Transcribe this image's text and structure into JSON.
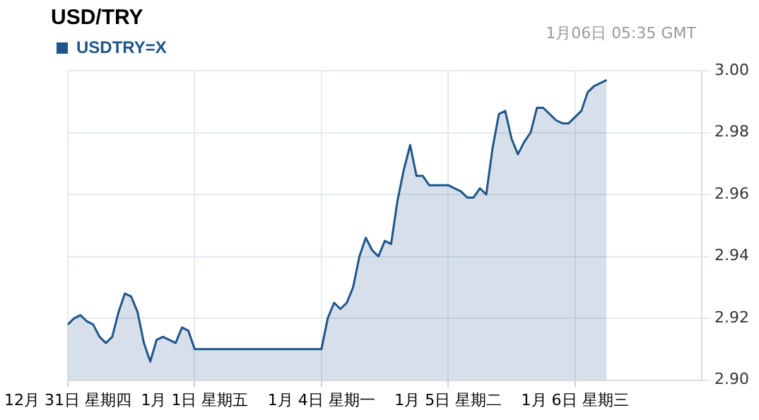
{
  "chart_data": {
    "type": "area",
    "title": "USD/TRY",
    "annotations": [
      "1月06日 05:35 GMT"
    ],
    "legend": "top left",
    "grid": true,
    "categories": [
      "12月 31日 星期四",
      null,
      null,
      null,
      null,
      null,
      null,
      null,
      null,
      null,
      null,
      null,
      null,
      null,
      null,
      null,
      null,
      null,
      null,
      null,
      "1月 1日 星期五",
      null,
      null,
      null,
      null,
      null,
      null,
      null,
      null,
      null,
      null,
      null,
      null,
      null,
      null,
      null,
      null,
      null,
      null,
      null,
      "1月 4日 星期一",
      null,
      null,
      null,
      null,
      null,
      null,
      null,
      null,
      null,
      null,
      null,
      null,
      null,
      null,
      null,
      null,
      null,
      null,
      null,
      "1月 5日 星期二",
      null,
      null,
      null,
      null,
      null,
      null,
      null,
      null,
      null,
      null,
      null,
      null,
      null,
      null,
      null,
      null,
      null,
      null,
      null,
      "1月 6日 星期三",
      null,
      null,
      null,
      null,
      null,
      null,
      null,
      null,
      null,
      null,
      null,
      null,
      null,
      null,
      null,
      null,
      null,
      null,
      null,
      null
    ],
    "ylim": [
      2.9,
      3.0
    ],
    "yticks": [
      {
        "value": 2.9,
        "label": "2.90"
      },
      {
        "value": 2.92,
        "label": "2.92"
      },
      {
        "value": 2.94,
        "label": "2.94"
      },
      {
        "value": 2.96,
        "label": "2.96"
      },
      {
        "value": 2.98,
        "label": "2.98"
      },
      {
        "value": 3.0,
        "label": "3.00"
      }
    ],
    "series": [
      {
        "name": "USDTRY=X",
        "color": "#1f558a",
        "values": [
          2.918,
          2.92,
          2.921,
          2.919,
          2.918,
          2.914,
          2.912,
          2.914,
          2.922,
          2.928,
          2.927,
          2.922,
          2.912,
          2.906,
          2.913,
          2.914,
          2.913,
          2.912,
          2.917,
          2.916,
          2.91,
          2.91,
          2.91,
          2.91,
          2.91,
          2.91,
          2.91,
          2.91,
          2.91,
          2.91,
          2.91,
          2.91,
          2.91,
          2.91,
          2.91,
          2.91,
          2.91,
          2.91,
          2.91,
          2.91,
          2.91,
          2.92,
          2.925,
          2.923,
          2.925,
          2.93,
          2.94,
          2.946,
          2.942,
          2.94,
          2.945,
          2.944,
          2.958,
          2.968,
          2.976,
          2.966,
          2.966,
          2.963,
          2.963,
          2.963,
          2.963,
          2.962,
          2.961,
          2.959,
          2.959,
          2.962,
          2.96,
          2.975,
          2.986,
          2.987,
          2.978,
          2.973,
          2.977,
          2.98,
          2.988,
          2.988,
          2.986,
          2.984,
          2.983,
          2.983,
          2.985,
          2.987,
          2.993,
          2.995,
          2.996,
          2.997,
          null,
          null,
          null,
          null,
          null,
          null,
          null,
          null,
          null,
          null,
          null,
          null,
          null,
          null,
          null
        ]
      }
    ]
  }
}
